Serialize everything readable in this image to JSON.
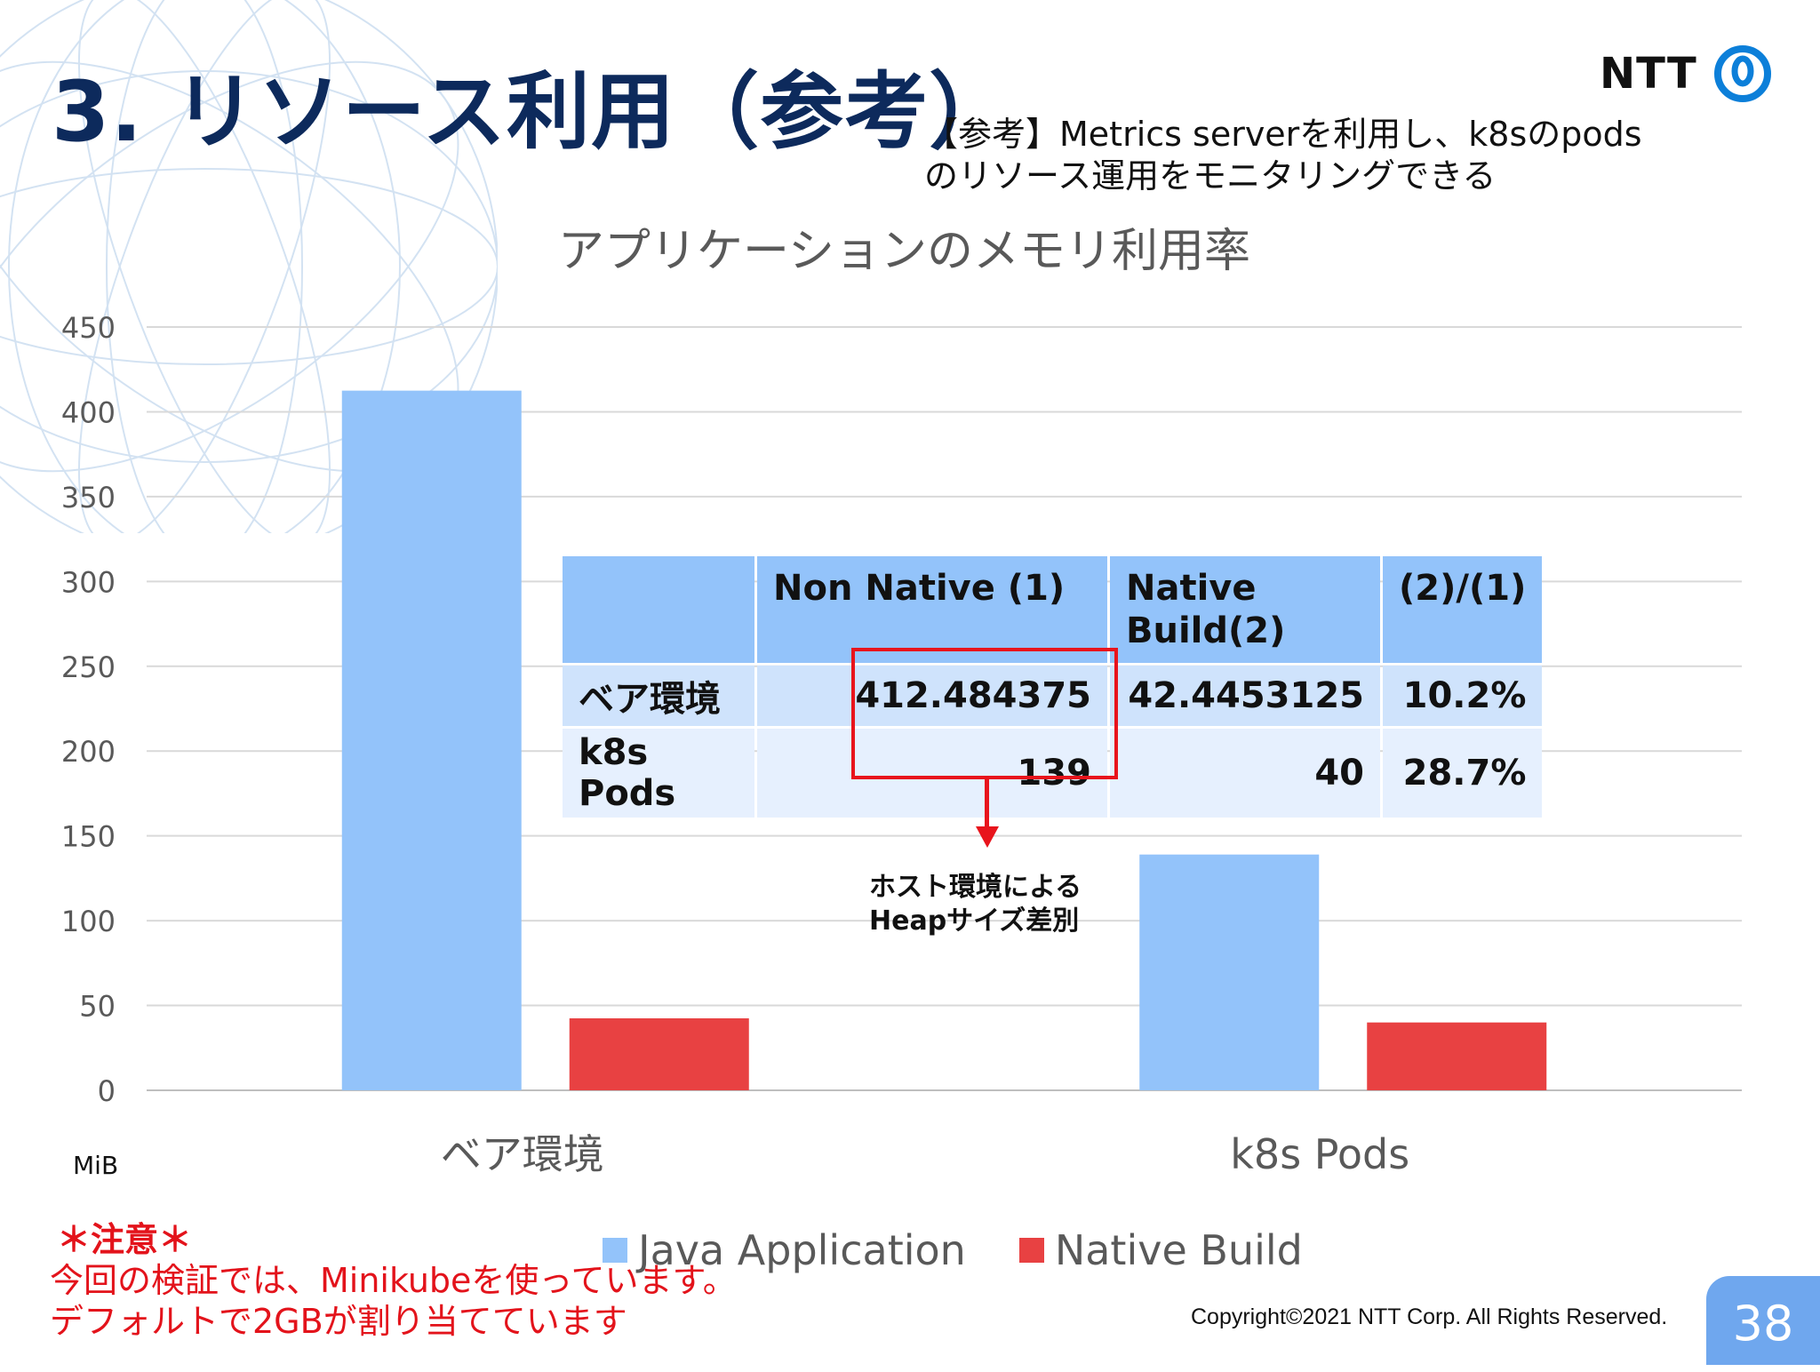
{
  "slide": {
    "title": "3. リソース利用（参考）",
    "note_line1": "【参考】Metrics serverを利用し、k8sのpods",
    "note_line2": "のリソース運用をモニタリングできる",
    "logo_text": "NTT",
    "logo_icon": "ntt-ring-icon",
    "copyright": "Copyright©2021  NTT Corp. All Rights Reserved.",
    "page_number": "38"
  },
  "chart_data": {
    "type": "bar",
    "title": "アプリケーションのメモリ利用率",
    "categories": [
      "ベア環境",
      "k8s Pods"
    ],
    "series": [
      {
        "name": "Java Application",
        "values": [
          412.484375,
          139
        ],
        "color": "#93c3fa"
      },
      {
        "name": "Native Build",
        "values": [
          42.4453125,
          40
        ],
        "color": "#e84142"
      }
    ],
    "ylim": [
      0,
      450
    ],
    "yticks": [
      "0",
      "50",
      "100",
      "150",
      "200",
      "250",
      "300",
      "350",
      "400",
      "450"
    ],
    "ylabel": "",
    "xlabel": "",
    "unit_label": "MiB",
    "grid": true,
    "legend_position": "bottom"
  },
  "table": {
    "headers": [
      "",
      "Non Native (1)",
      "Native Build(2)",
      "(2)/(1)"
    ],
    "header_native_line1": "Native",
    "header_native_line2": "Build(2)",
    "rows": [
      {
        "label": "ベア環境",
        "non_native": "412.484375",
        "native": "42.4453125",
        "ratio": "10.2%"
      },
      {
        "label": "k8s Pods",
        "non_native": "139",
        "native": "40",
        "ratio": "28.7%"
      }
    ]
  },
  "callout": {
    "line1": "ホスト環境による",
    "line2": "Heapサイズ差別"
  },
  "warning": {
    "heading": "＊注意＊",
    "line1": "今回の検証では、Minikubeを使っています。",
    "line2": "デフォルトで2GBが割り当てています"
  }
}
